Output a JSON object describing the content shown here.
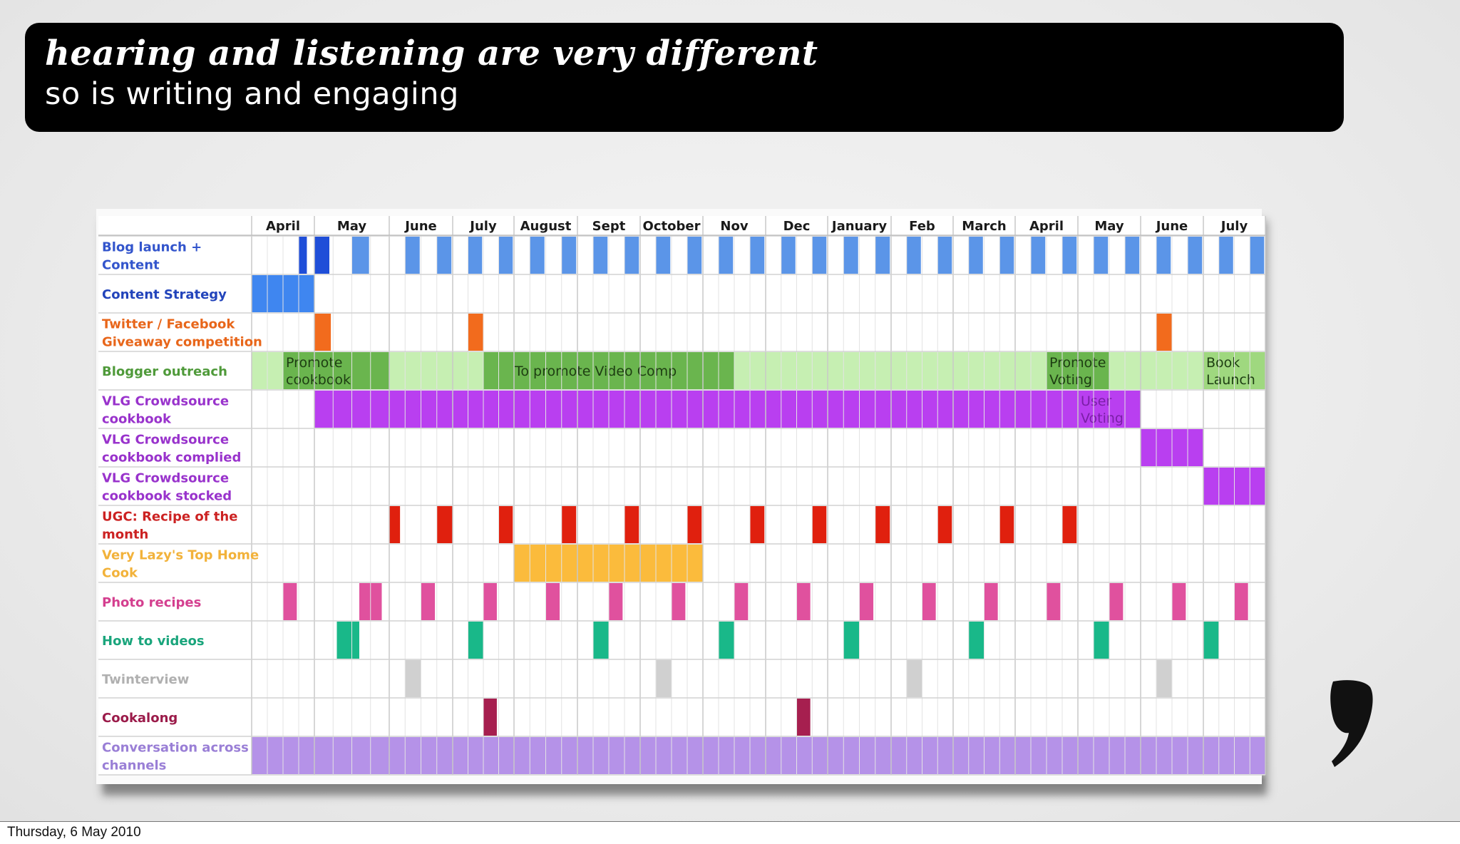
{
  "slide": {
    "title": "hearing and listening are very different",
    "subtitle": "so is writing and engaging"
  },
  "footer": {
    "date": "Thursday, 6 May 2010"
  },
  "chart_data": {
    "type": "gantt",
    "columns": [
      "April",
      "May",
      "June",
      "July",
      "August",
      "Sept",
      "October",
      "Nov",
      "Dec",
      "January",
      "Feb",
      "March",
      "April",
      "May",
      "June",
      "July"
    ],
    "rows": [
      {
        "label": "Blog launch + Content",
        "color": "#3355cc",
        "bars": [
          {
            "start": 0.75,
            "end": 0.88,
            "color": "#1f4ed8"
          },
          {
            "start": 1.0,
            "end": 1.2,
            "color": "#1f4ed8"
          },
          {
            "start": 1.5,
            "end": 1.73,
            "color": "#5b95e8"
          },
          {
            "start": 2.25,
            "end": 2.48,
            "color": "#5b95e8"
          },
          {
            "start": 2.75,
            "end": 2.98,
            "color": "#5b95e8"
          },
          {
            "start": 3.25,
            "end": 3.48,
            "color": "#5b95e8"
          },
          {
            "start": 3.75,
            "end": 3.98,
            "color": "#5b95e8"
          },
          {
            "start": 4.25,
            "end": 4.48,
            "color": "#5b95e8"
          },
          {
            "start": 4.75,
            "end": 4.98,
            "color": "#5b95e8"
          },
          {
            "start": 5.25,
            "end": 5.48,
            "color": "#5b95e8"
          },
          {
            "start": 5.75,
            "end": 5.98,
            "color": "#5b95e8"
          },
          {
            "start": 6.25,
            "end": 6.48,
            "color": "#5b95e8"
          },
          {
            "start": 6.75,
            "end": 6.98,
            "color": "#5b95e8"
          },
          {
            "start": 7.25,
            "end": 7.48,
            "color": "#5b95e8"
          },
          {
            "start": 7.75,
            "end": 7.98,
            "color": "#5b95e8"
          },
          {
            "start": 8.25,
            "end": 8.48,
            "color": "#5b95e8"
          },
          {
            "start": 8.75,
            "end": 8.98,
            "color": "#5b95e8"
          },
          {
            "start": 9.25,
            "end": 9.48,
            "color": "#5b95e8"
          },
          {
            "start": 9.75,
            "end": 9.98,
            "color": "#5b95e8"
          },
          {
            "start": 10.25,
            "end": 10.48,
            "color": "#5b95e8"
          },
          {
            "start": 10.75,
            "end": 10.98,
            "color": "#5b95e8"
          },
          {
            "start": 11.25,
            "end": 11.48,
            "color": "#5b95e8"
          },
          {
            "start": 11.75,
            "end": 11.98,
            "color": "#5b95e8"
          },
          {
            "start": 12.25,
            "end": 12.48,
            "color": "#5b95e8"
          },
          {
            "start": 12.75,
            "end": 12.98,
            "color": "#5b95e8"
          },
          {
            "start": 13.25,
            "end": 13.48,
            "color": "#5b95e8"
          },
          {
            "start": 13.75,
            "end": 13.98,
            "color": "#5b95e8"
          },
          {
            "start": 14.25,
            "end": 14.48,
            "color": "#5b95e8"
          },
          {
            "start": 14.75,
            "end": 14.98,
            "color": "#5b95e8"
          },
          {
            "start": 15.25,
            "end": 15.48,
            "color": "#5b95e8"
          },
          {
            "start": 15.75,
            "end": 15.98,
            "color": "#5b95e8"
          }
        ]
      },
      {
        "label": "Content Strategy",
        "color": "#2244bb",
        "bars": [
          {
            "start": 0,
            "end": 1,
            "color": "#3f86f0"
          }
        ]
      },
      {
        "label": "Twitter / Facebook Giveaway competition",
        "color": "#e8661a",
        "bars": [
          {
            "start": 1.0,
            "end": 1.22,
            "color": "#f26b1d"
          },
          {
            "start": 3.25,
            "end": 3.5,
            "color": "#f26b1d"
          },
          {
            "start": 14.25,
            "end": 14.5,
            "color": "#f26b1d"
          }
        ]
      },
      {
        "label": "Blogger outreach",
        "color": "#4f9a3a",
        "bars": [
          {
            "start": 0,
            "end": 16,
            "color": "#c6efb2"
          },
          {
            "start": 0.5,
            "end": 2.0,
            "color": "#6ab54e",
            "text": "Promote cookbook"
          },
          {
            "start": 3.5,
            "end": 7.5,
            "color": "#6ab54e",
            "text": "To promote Video Comp"
          },
          {
            "start": 12.5,
            "end": 13.5,
            "color": "#6ab54e",
            "text": "Promote Voting"
          },
          {
            "start": 15.0,
            "end": 16.0,
            "color": "#9fd87f",
            "text": "Book Launch"
          }
        ]
      },
      {
        "label": "VLG Crowdsource cookbook",
        "color": "#9933cc",
        "bars": [
          {
            "start": 1,
            "end": 13,
            "color": "#b93ff0"
          },
          {
            "start": 13,
            "end": 14,
            "color": "#b93ff0",
            "text": "User Voting"
          }
        ]
      },
      {
        "label": "VLG Crowdsource cookbook complied",
        "color": "#9933cc",
        "bars": [
          {
            "start": 14,
            "end": 15,
            "color": "#b93ff0"
          }
        ]
      },
      {
        "label": "VLG Crowdsource cookbook stocked",
        "color": "#9933cc",
        "bars": [
          {
            "start": 15,
            "end": 16,
            "color": "#b93ff0"
          }
        ]
      },
      {
        "label": "UGC: Recipe of the month",
        "color": "#cc2222",
        "bars": [
          {
            "start": 2.0,
            "end": 2.17,
            "color": "#e0200e"
          },
          {
            "start": 2.75,
            "end": 3.0,
            "color": "#e0200e"
          },
          {
            "start": 3.75,
            "end": 3.98,
            "color": "#e0200e"
          },
          {
            "start": 4.75,
            "end": 4.98,
            "color": "#e0200e"
          },
          {
            "start": 5.75,
            "end": 5.98,
            "color": "#e0200e"
          },
          {
            "start": 6.75,
            "end": 6.98,
            "color": "#e0200e"
          },
          {
            "start": 7.75,
            "end": 7.98,
            "color": "#e0200e"
          },
          {
            "start": 8.75,
            "end": 8.98,
            "color": "#e0200e"
          },
          {
            "start": 9.75,
            "end": 9.98,
            "color": "#e0200e"
          },
          {
            "start": 10.75,
            "end": 10.98,
            "color": "#e0200e"
          },
          {
            "start": 11.75,
            "end": 11.98,
            "color": "#e0200e"
          },
          {
            "start": 12.75,
            "end": 12.98,
            "color": "#e0200e"
          }
        ]
      },
      {
        "label": "Very Lazy's Top Home Cook",
        "color": "#f2b23a",
        "bars": [
          {
            "start": 4,
            "end": 7,
            "color": "#fbbb3c"
          }
        ]
      },
      {
        "label": "Photo recipes",
        "color": "#d43f8f",
        "bars": [
          {
            "start": 0.5,
            "end": 0.72,
            "color": "#e0519e"
          },
          {
            "start": 1.6,
            "end": 1.9,
            "color": "#e0519e"
          },
          {
            "start": 2.5,
            "end": 2.72,
            "color": "#e0519e"
          },
          {
            "start": 3.5,
            "end": 3.72,
            "color": "#e0519e"
          },
          {
            "start": 4.5,
            "end": 4.72,
            "color": "#e0519e"
          },
          {
            "start": 5.5,
            "end": 5.72,
            "color": "#e0519e"
          },
          {
            "start": 6.5,
            "end": 6.72,
            "color": "#e0519e"
          },
          {
            "start": 7.5,
            "end": 7.72,
            "color": "#e0519e"
          },
          {
            "start": 8.5,
            "end": 8.72,
            "color": "#e0519e"
          },
          {
            "start": 9.5,
            "end": 9.72,
            "color": "#e0519e"
          },
          {
            "start": 10.5,
            "end": 10.72,
            "color": "#e0519e"
          },
          {
            "start": 11.5,
            "end": 11.72,
            "color": "#e0519e"
          },
          {
            "start": 12.5,
            "end": 12.72,
            "color": "#e0519e"
          },
          {
            "start": 13.5,
            "end": 13.72,
            "color": "#e0519e"
          },
          {
            "start": 14.5,
            "end": 14.72,
            "color": "#e0519e"
          },
          {
            "start": 15.5,
            "end": 15.72,
            "color": "#e0519e"
          }
        ]
      },
      {
        "label": "How to videos",
        "color": "#1aa57c",
        "bars": [
          {
            "start": 1.3,
            "end": 1.6,
            "color": "#19b889"
          },
          {
            "start": 3.25,
            "end": 3.5,
            "color": "#19b889"
          },
          {
            "start": 5.25,
            "end": 5.5,
            "color": "#19b889"
          },
          {
            "start": 7.25,
            "end": 7.5,
            "color": "#19b889"
          },
          {
            "start": 9.25,
            "end": 9.5,
            "color": "#19b889"
          },
          {
            "start": 11.25,
            "end": 11.5,
            "color": "#19b889"
          },
          {
            "start": 13.25,
            "end": 13.5,
            "color": "#19b889"
          },
          {
            "start": 15.0,
            "end": 15.25,
            "color": "#19b889"
          }
        ]
      },
      {
        "label": "Twinterview",
        "color": "#b0b0b0",
        "bars": [
          {
            "start": 2.25,
            "end": 2.5,
            "color": "#d0d0d0"
          },
          {
            "start": 6.25,
            "end": 6.5,
            "color": "#d0d0d0"
          },
          {
            "start": 10.25,
            "end": 10.5,
            "color": "#d0d0d0"
          },
          {
            "start": 14.25,
            "end": 14.5,
            "color": "#d0d0d0"
          }
        ]
      },
      {
        "label": "Cookalong",
        "color": "#9b1b4a",
        "bars": [
          {
            "start": 3.5,
            "end": 3.72,
            "color": "#a61f4f"
          },
          {
            "start": 8.5,
            "end": 8.72,
            "color": "#a61f4f"
          }
        ]
      },
      {
        "label": "Conversation across channels",
        "color": "#9a7fd6",
        "bars": [
          {
            "start": 0,
            "end": 16,
            "color": "#b592e8"
          }
        ]
      }
    ]
  }
}
